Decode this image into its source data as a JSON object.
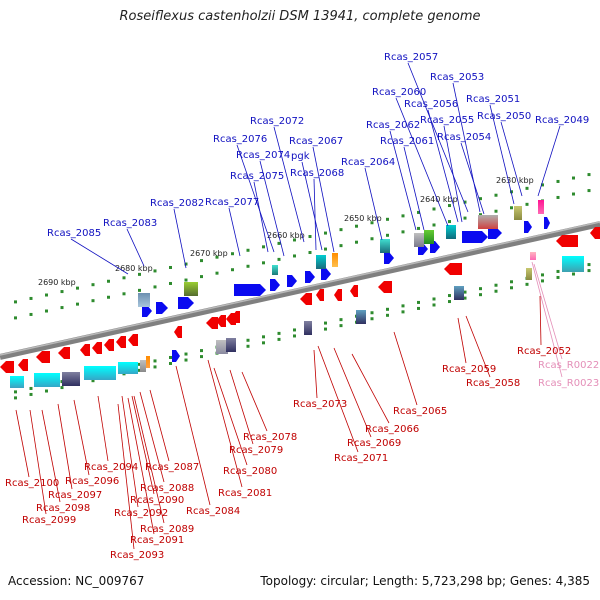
{
  "title": "Roseiflexus castenholzii DSM 13941, complete genome",
  "accession": "Accession: NC_009767",
  "topology": "Topology: circular; Length: 5,723,298 bp; Genes: 4,385",
  "colors": {
    "forward": "#0a0af0",
    "reverse": "#f00000",
    "forward_label": "#1010c0",
    "reverse_label": "#c00000",
    "rna_label": "#e48fb8",
    "backbone": "#808080",
    "tick": "#2e8b2e"
  },
  "scale_labels": [
    "2690 kbp",
    "2680 kbp",
    "2670 kbp",
    "2660 kbp",
    "2650 kbp",
    "2640 kbp",
    "2630 kbp"
  ],
  "top_labels": [
    "Rcas_2057",
    "Rcas_2053",
    "Rcas_2060",
    "Rcas_2056",
    "Rcas_2051",
    "Rcas_2055",
    "Rcas_2050",
    "Rcas_2062",
    "Rcas_2049",
    "Rcas_2072",
    "Rcas_2061",
    "Rcas_2054",
    "Rcas_2076",
    "Rcas_2067",
    "Rcas_2074",
    "pgk",
    "Rcas_2064",
    "Rcas_2075",
    "Rcas_2068",
    "Rcas_2077",
    "Rcas_2082",
    "Rcas_2083",
    "Rcas_2085"
  ],
  "bottom_labels": [
    "Rcas_2052",
    "Rcas_R0022",
    "Rcas_R0023",
    "Rcas_2059",
    "Rcas_2058",
    "Rcas_2065",
    "Rcas_2073",
    "Rcas_2066",
    "Rcas_2078",
    "Rcas_2069",
    "Rcas_2079",
    "Rcas_2071",
    "Rcas_2094",
    "Rcas_2087",
    "Rcas_2080",
    "Rcas_2100",
    "Rcas_2096",
    "Rcas_2088",
    "Rcas_2097",
    "Rcas_2081",
    "Rcas_2090",
    "Rcas_2098",
    "Rcas_2084",
    "Rcas_2092",
    "Rcas_2099",
    "Rcas_2089",
    "Rcas_2091",
    "Rcas_2093"
  ]
}
